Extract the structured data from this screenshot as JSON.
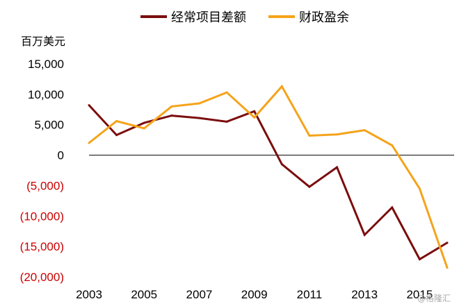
{
  "chart_data": {
    "type": "line",
    "title": "",
    "unit_label": "百万美元",
    "x": [
      2003,
      2004,
      2005,
      2006,
      2007,
      2008,
      2009,
      2010,
      2011,
      2012,
      2013,
      2014,
      2015,
      2016
    ],
    "x_tick_labels": [
      "2003",
      "2005",
      "2007",
      "2009",
      "2011",
      "2013",
      "2015"
    ],
    "y_tick_labels": [
      "15,000",
      "10,000",
      "5,000",
      "0",
      "(5,000)",
      "(10,000)",
      "(15,000)",
      "(20,000)"
    ],
    "y_tick_values": [
      15000,
      10000,
      5000,
      0,
      -5000,
      -10000,
      -15000,
      -20000
    ],
    "ylim": [
      -20000,
      15000
    ],
    "xlim": [
      2003,
      2016
    ],
    "grid": false,
    "legend_position": "top",
    "series": [
      {
        "name": "经常项目差额",
        "color": "#7B0D0D",
        "values": [
          8200,
          3300,
          5300,
          6500,
          6100,
          5500,
          7200,
          -1500,
          -5200,
          -2000,
          -13100,
          -8600,
          -17100,
          -14400
        ]
      },
      {
        "name": "财政盈余",
        "color": "#F5A31A",
        "values": [
          2000,
          5600,
          4400,
          8000,
          8500,
          10300,
          6200,
          11300,
          3200,
          3400,
          4100,
          1600,
          -5500,
          -18500
        ]
      }
    ],
    "negative_tick_color": "#CC0000",
    "positive_tick_color": "#000000"
  },
  "watermark": "@格隆汇"
}
